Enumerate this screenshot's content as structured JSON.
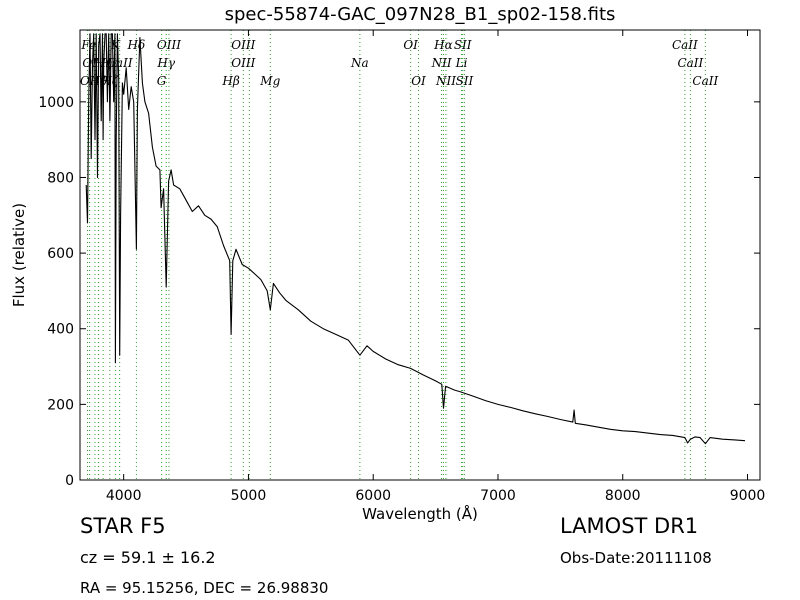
{
  "chart_data": {
    "type": "line",
    "title": "spec-55874-GAC_097N28_B1_sp02-158.fits",
    "xlabel": "Wavelength (Å)",
    "ylabel": "Flux (relative)",
    "xlim": [
      3650,
      9100
    ],
    "ylim": [
      0,
      1190
    ],
    "xticks": [
      4000,
      5000,
      6000,
      7000,
      8000,
      9000
    ],
    "yticks": [
      0,
      200,
      400,
      600,
      800,
      1000
    ],
    "grid": false,
    "series": [
      {
        "color": "#000000",
        "x": [
          3700,
          3710,
          3720,
          3730,
          3740,
          3750,
          3760,
          3770,
          3780,
          3790,
          3800,
          3810,
          3820,
          3830,
          3835,
          3840,
          3850,
          3860,
          3870,
          3880,
          3890,
          3900,
          3910,
          3920,
          3930,
          3934,
          3940,
          3950,
          3960,
          3968,
          3975,
          3990,
          4000,
          4020,
          4040,
          4060,
          4080,
          4102,
          4110,
          4130,
          4150,
          4170,
          4200,
          4230,
          4260,
          4290,
          4300,
          4320,
          4341,
          4360,
          4380,
          4400,
          4450,
          4500,
          4550,
          4600,
          4650,
          4700,
          4750,
          4800,
          4850,
          4861,
          4875,
          4900,
          4950,
          5000,
          5050,
          5100,
          5150,
          5175,
          5200,
          5250,
          5300,
          5400,
          5500,
          5600,
          5700,
          5800,
          5893,
          5950,
          6000,
          6100,
          6200,
          6300,
          6400,
          6500,
          6550,
          6563,
          6580,
          6650,
          6700,
          6800,
          6900,
          7000,
          7100,
          7200,
          7300,
          7400,
          7500,
          7600,
          7610,
          7620,
          7700,
          7800,
          7900,
          8000,
          8100,
          8200,
          8300,
          8400,
          8498,
          8520,
          8542,
          8580,
          8620,
          8662,
          8700,
          8800,
          8900,
          8980
        ],
        "y": [
          780,
          680,
          1000,
          1180,
          850,
          1100,
          1180,
          900,
          1180,
          800,
          1150,
          1180,
          950,
          1180,
          900,
          1100,
          1180,
          1180,
          1000,
          1180,
          950,
          1180,
          1180,
          1000,
          1180,
          310,
          900,
          1180,
          1060,
          330,
          700,
          1050,
          1020,
          1090,
          980,
          1040,
          1000,
          610,
          980,
          1170,
          1050,
          1000,
          970,
          880,
          830,
          820,
          720,
          770,
          510,
          790,
          820,
          780,
          770,
          740,
          710,
          725,
          700,
          690,
          670,
          620,
          580,
          385,
          580,
          610,
          570,
          560,
          545,
          530,
          500,
          450,
          520,
          495,
          475,
          450,
          420,
          400,
          385,
          370,
          330,
          355,
          340,
          320,
          305,
          295,
          278,
          262,
          253,
          190,
          248,
          238,
          233,
          222,
          210,
          200,
          192,
          183,
          175,
          168,
          160,
          153,
          185,
          150,
          146,
          140,
          134,
          130,
          128,
          124,
          120,
          118,
          112,
          98,
          108,
          114,
          112,
          96,
          112,
          108,
          106,
          104
        ]
      }
    ],
    "annotations": {
      "row1": [
        {
          "text": "Fe",
          "x": 3720
        },
        {
          "text": "K",
          "x": 3934
        },
        {
          "text": "Hδ",
          "x": 4102
        },
        {
          "text": "OIII",
          "x": 4363
        },
        {
          "text": "OIII",
          "x": 4959
        },
        {
          "text": "OI",
          "x": 6300
        },
        {
          "text": "Hα",
          "x": 6563
        },
        {
          "text": "SII",
          "x": 6717
        },
        {
          "text": "CaII",
          "x": 8498
        }
      ],
      "row2": [
        {
          "text": "OI",
          "x": 3727
        },
        {
          "text": "Hη",
          "x": 3835
        },
        {
          "text": "Hε",
          "x": 3889
        },
        {
          "text": "CaII",
          "x": 3968
        },
        {
          "text": "Hγ",
          "x": 4341
        },
        {
          "text": "OIII",
          "x": 4959
        },
        {
          "text": "Na",
          "x": 5893
        },
        {
          "text": "NII",
          "x": 6548
        },
        {
          "text": "Li",
          "x": 6708
        },
        {
          "text": "CaII",
          "x": 8542
        }
      ],
      "row3": [
        {
          "text": "OII",
          "x": 3727
        },
        {
          "text": "Hθ",
          "x": 3798
        },
        {
          "text": "Hζ",
          "x": 3889
        },
        {
          "text": "G",
          "x": 4304
        },
        {
          "text": "Hβ",
          "x": 4861
        },
        {
          "text": "Mg",
          "x": 5175
        },
        {
          "text": "OI",
          "x": 6363
        },
        {
          "text": "NII",
          "x": 6583
        },
        {
          "text": "SII",
          "x": 6731
        },
        {
          "text": "CaII",
          "x": 8662
        }
      ],
      "line_positions": [
        3710,
        3727,
        3770,
        3798,
        3835,
        3889,
        3934,
        3968,
        4102,
        4304,
        4341,
        4363,
        4861,
        4959,
        5007,
        5175,
        5893,
        6300,
        6363,
        6548,
        6563,
        6583,
        6708,
        6717,
        6731,
        8498,
        8542,
        8662
      ],
      "line_color": "#2ca02c"
    }
  },
  "info": {
    "object": "STAR   F5",
    "redshift": "cz = 59.1  ± 16.2",
    "coords": "RA = 95.15256, DEC = 26.98830",
    "survey": "LAMOST DR1",
    "obs_date": "Obs-Date:20111108"
  }
}
